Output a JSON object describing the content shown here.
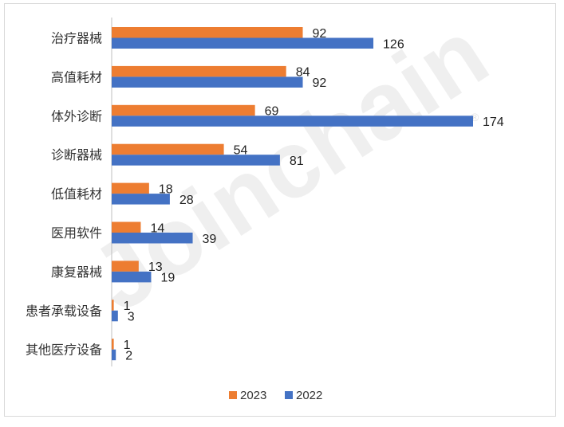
{
  "colors": {
    "series_2023": "#ED7D31",
    "series_2022": "#4472C4",
    "axis": "#bfbfbf"
  },
  "watermark": {
    "text": "Joinchain",
    "mark": "®"
  },
  "chart_data": {
    "type": "bar",
    "orientation": "horizontal",
    "title": "",
    "xlabel": "",
    "ylabel": "",
    "categories": [
      "治疗器械",
      "高值耗材",
      "体外诊断",
      "诊断器械",
      "低值耗材",
      "医用软件",
      "康复器械",
      "患者承载设备",
      "其他医疗设备"
    ],
    "series": [
      {
        "name": "2023",
        "values": [
          92,
          84,
          69,
          54,
          18,
          14,
          13,
          1,
          1
        ]
      },
      {
        "name": "2022",
        "values": [
          126,
          92,
          174,
          81,
          28,
          39,
          19,
          3,
          2
        ]
      }
    ],
    "xlim": [
      0,
      174
    ],
    "grid": false,
    "legend_position": "bottom-center"
  }
}
